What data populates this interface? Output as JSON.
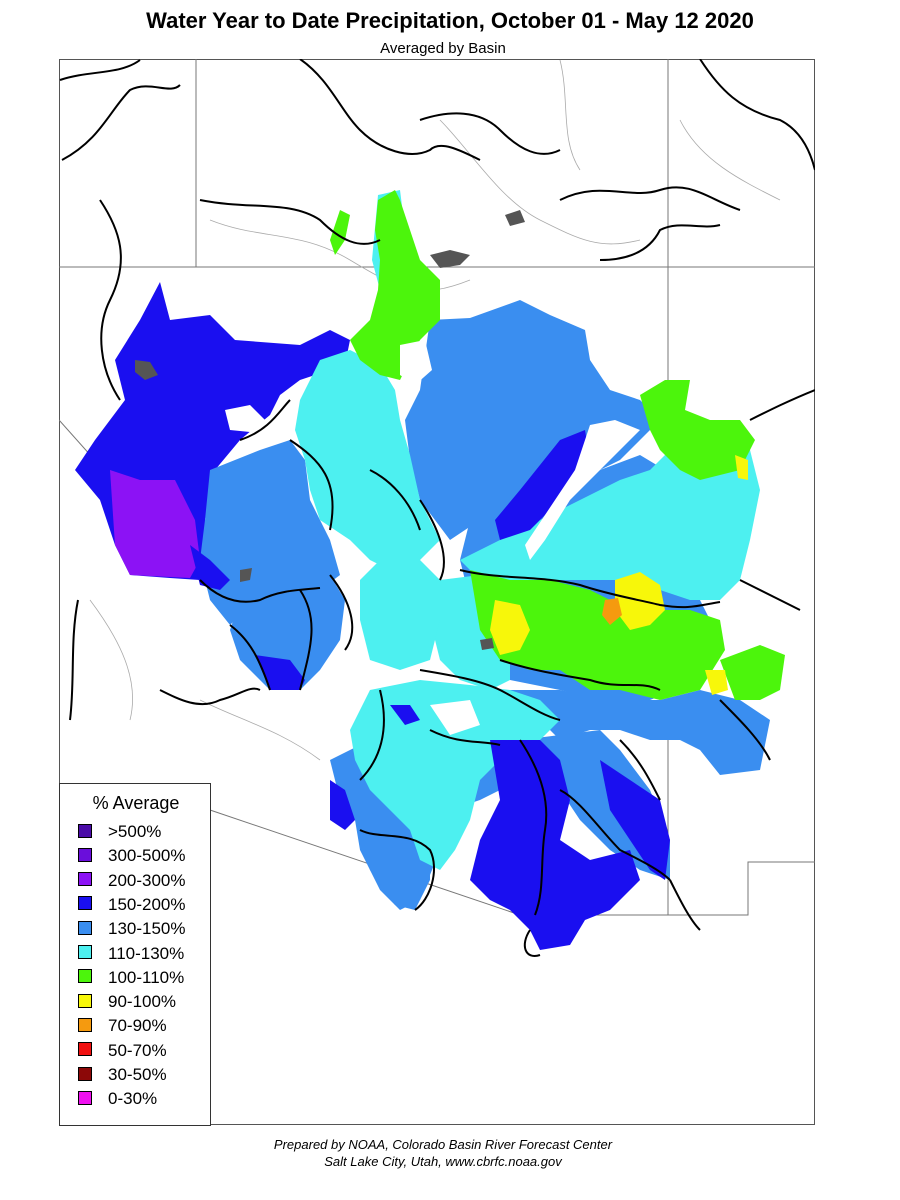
{
  "header": {
    "title": "Water Year to Date Precipitation, October 01  - May 12 2020",
    "subtitle": "Averaged by Basin"
  },
  "legend": {
    "title": "% Average",
    "items": [
      {
        "label": ">500%",
        "color": "#4B0CA8"
      },
      {
        "label": "300-500%",
        "color": "#6A0EDB"
      },
      {
        "label": "200-300%",
        "color": "#8C12F5"
      },
      {
        "label": "150-200%",
        "color": "#1A0FF0"
      },
      {
        "label": "130-150%",
        "color": "#3A8EF0"
      },
      {
        "label": "110-130%",
        "color": "#4DF0F0"
      },
      {
        "label": "100-110%",
        "color": "#4CF50C"
      },
      {
        "label": "90-100%",
        "color": "#F7F70A"
      },
      {
        "label": "70-90%",
        "color": "#F59A0F"
      },
      {
        "label": "50-70%",
        "color": "#F01010"
      },
      {
        "label": "30-50%",
        "color": "#8C0808"
      },
      {
        "label": "0-30%",
        "color": "#F010F0"
      }
    ]
  },
  "footer": {
    "line1": "Prepared by NOAA, Colorado Basin River Forecast Center",
    "line2": "Salt Lake City, Utah, www.cbrfc.noaa.gov"
  }
}
